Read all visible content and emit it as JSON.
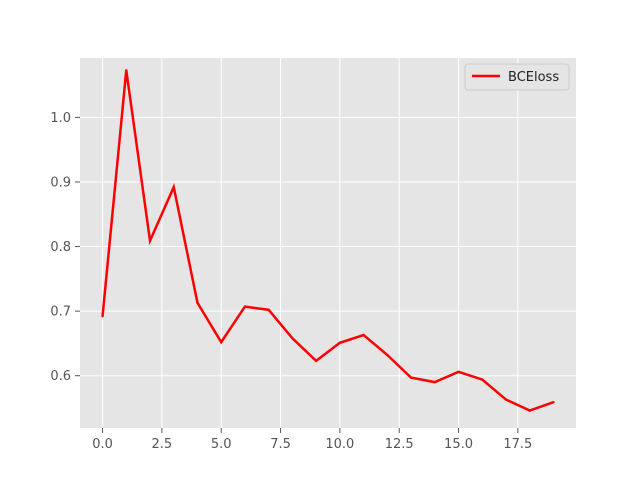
{
  "chart_data": {
    "type": "line",
    "title": "",
    "xlabel": "",
    "ylabel": "",
    "xlim": [
      -0.95,
      19.95
    ],
    "ylim": [
      0.519,
      1.092
    ],
    "xticks": [
      0,
      2.5,
      5,
      7.5,
      10,
      12.5,
      15,
      17.5
    ],
    "xtick_labels": [
      "0.0",
      "2.5",
      "5.0",
      "7.5",
      "10.0",
      "12.5",
      "15.0",
      "17.5"
    ],
    "yticks": [
      0.6,
      0.7,
      0.8,
      0.9,
      1.0
    ],
    "ytick_labels": [
      "0.6",
      "0.7",
      "0.8",
      "0.9",
      "1.0"
    ],
    "grid": true,
    "legend_position": "top-right",
    "series": [
      {
        "name": "BCEloss",
        "color": "#ff0000",
        "x": [
          0,
          1,
          2,
          3,
          4,
          5,
          6,
          7,
          8,
          9,
          10,
          11,
          12,
          13,
          14,
          15,
          16,
          17,
          18,
          19
        ],
        "values": [
          0.692,
          1.073,
          0.809,
          0.892,
          0.713,
          0.652,
          0.707,
          0.702,
          0.658,
          0.623,
          0.651,
          0.663,
          0.632,
          0.597,
          0.59,
          0.606,
          0.594,
          0.563,
          0.546,
          0.559
        ]
      }
    ]
  }
}
